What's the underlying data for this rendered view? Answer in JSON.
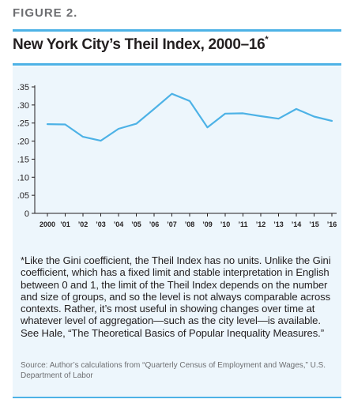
{
  "figure_label": "FIGURE 2.",
  "title": "New York City’s Theil Index, 2000–16",
  "title_marker": "*",
  "chart_data": {
    "type": "line",
    "title": "New York City’s Theil Index, 2000–16",
    "xlabel": "",
    "ylabel": "",
    "ylim": [
      0,
      0.35
    ],
    "grid": false,
    "x": [
      "2000",
      "’01",
      "’02",
      "’03",
      "’04",
      "’05",
      "’06",
      "’07",
      "’08",
      "’09",
      "’10",
      "’11",
      "’12",
      "’13",
      "’14",
      "’15",
      "’16"
    ],
    "y_ticks": [
      0,
      0.05,
      0.1,
      0.15,
      0.2,
      0.25,
      0.3,
      0.35
    ],
    "y_tick_labels": [
      "0",
      ".05",
      ".10",
      ".15",
      ".20",
      ".25",
      ".30",
      ".35"
    ],
    "series": [
      {
        "values": [
          0.247,
          0.246,
          0.212,
          0.201,
          0.234,
          0.248,
          0.289,
          0.331,
          0.311,
          0.238,
          0.276,
          0.277,
          0.269,
          0.262,
          0.289,
          0.268,
          0.256
        ]
      }
    ],
    "colors": {
      "line": "#4db2e6",
      "axis": "#231f20"
    }
  },
  "note": "*Like the Gini coefficient, the Theil Index has no units. Unlike the Gini coefficient, which has a fixed limit and stable interpretation in English between 0 and 1, the limit of the Theil Index depends on the number and size of groups, and so the level is not always comparable across contexts. Rather, it’s most useful in showing changes over time at whatever level of aggregation—such as the city level—is available. See Hale, “The Theoretical Basics of Popular Inequality Measures.”",
  "source": "Source: Author’s calculations from “Quarterly Census of Employment and Wages,” U.S. Department of Labor"
}
